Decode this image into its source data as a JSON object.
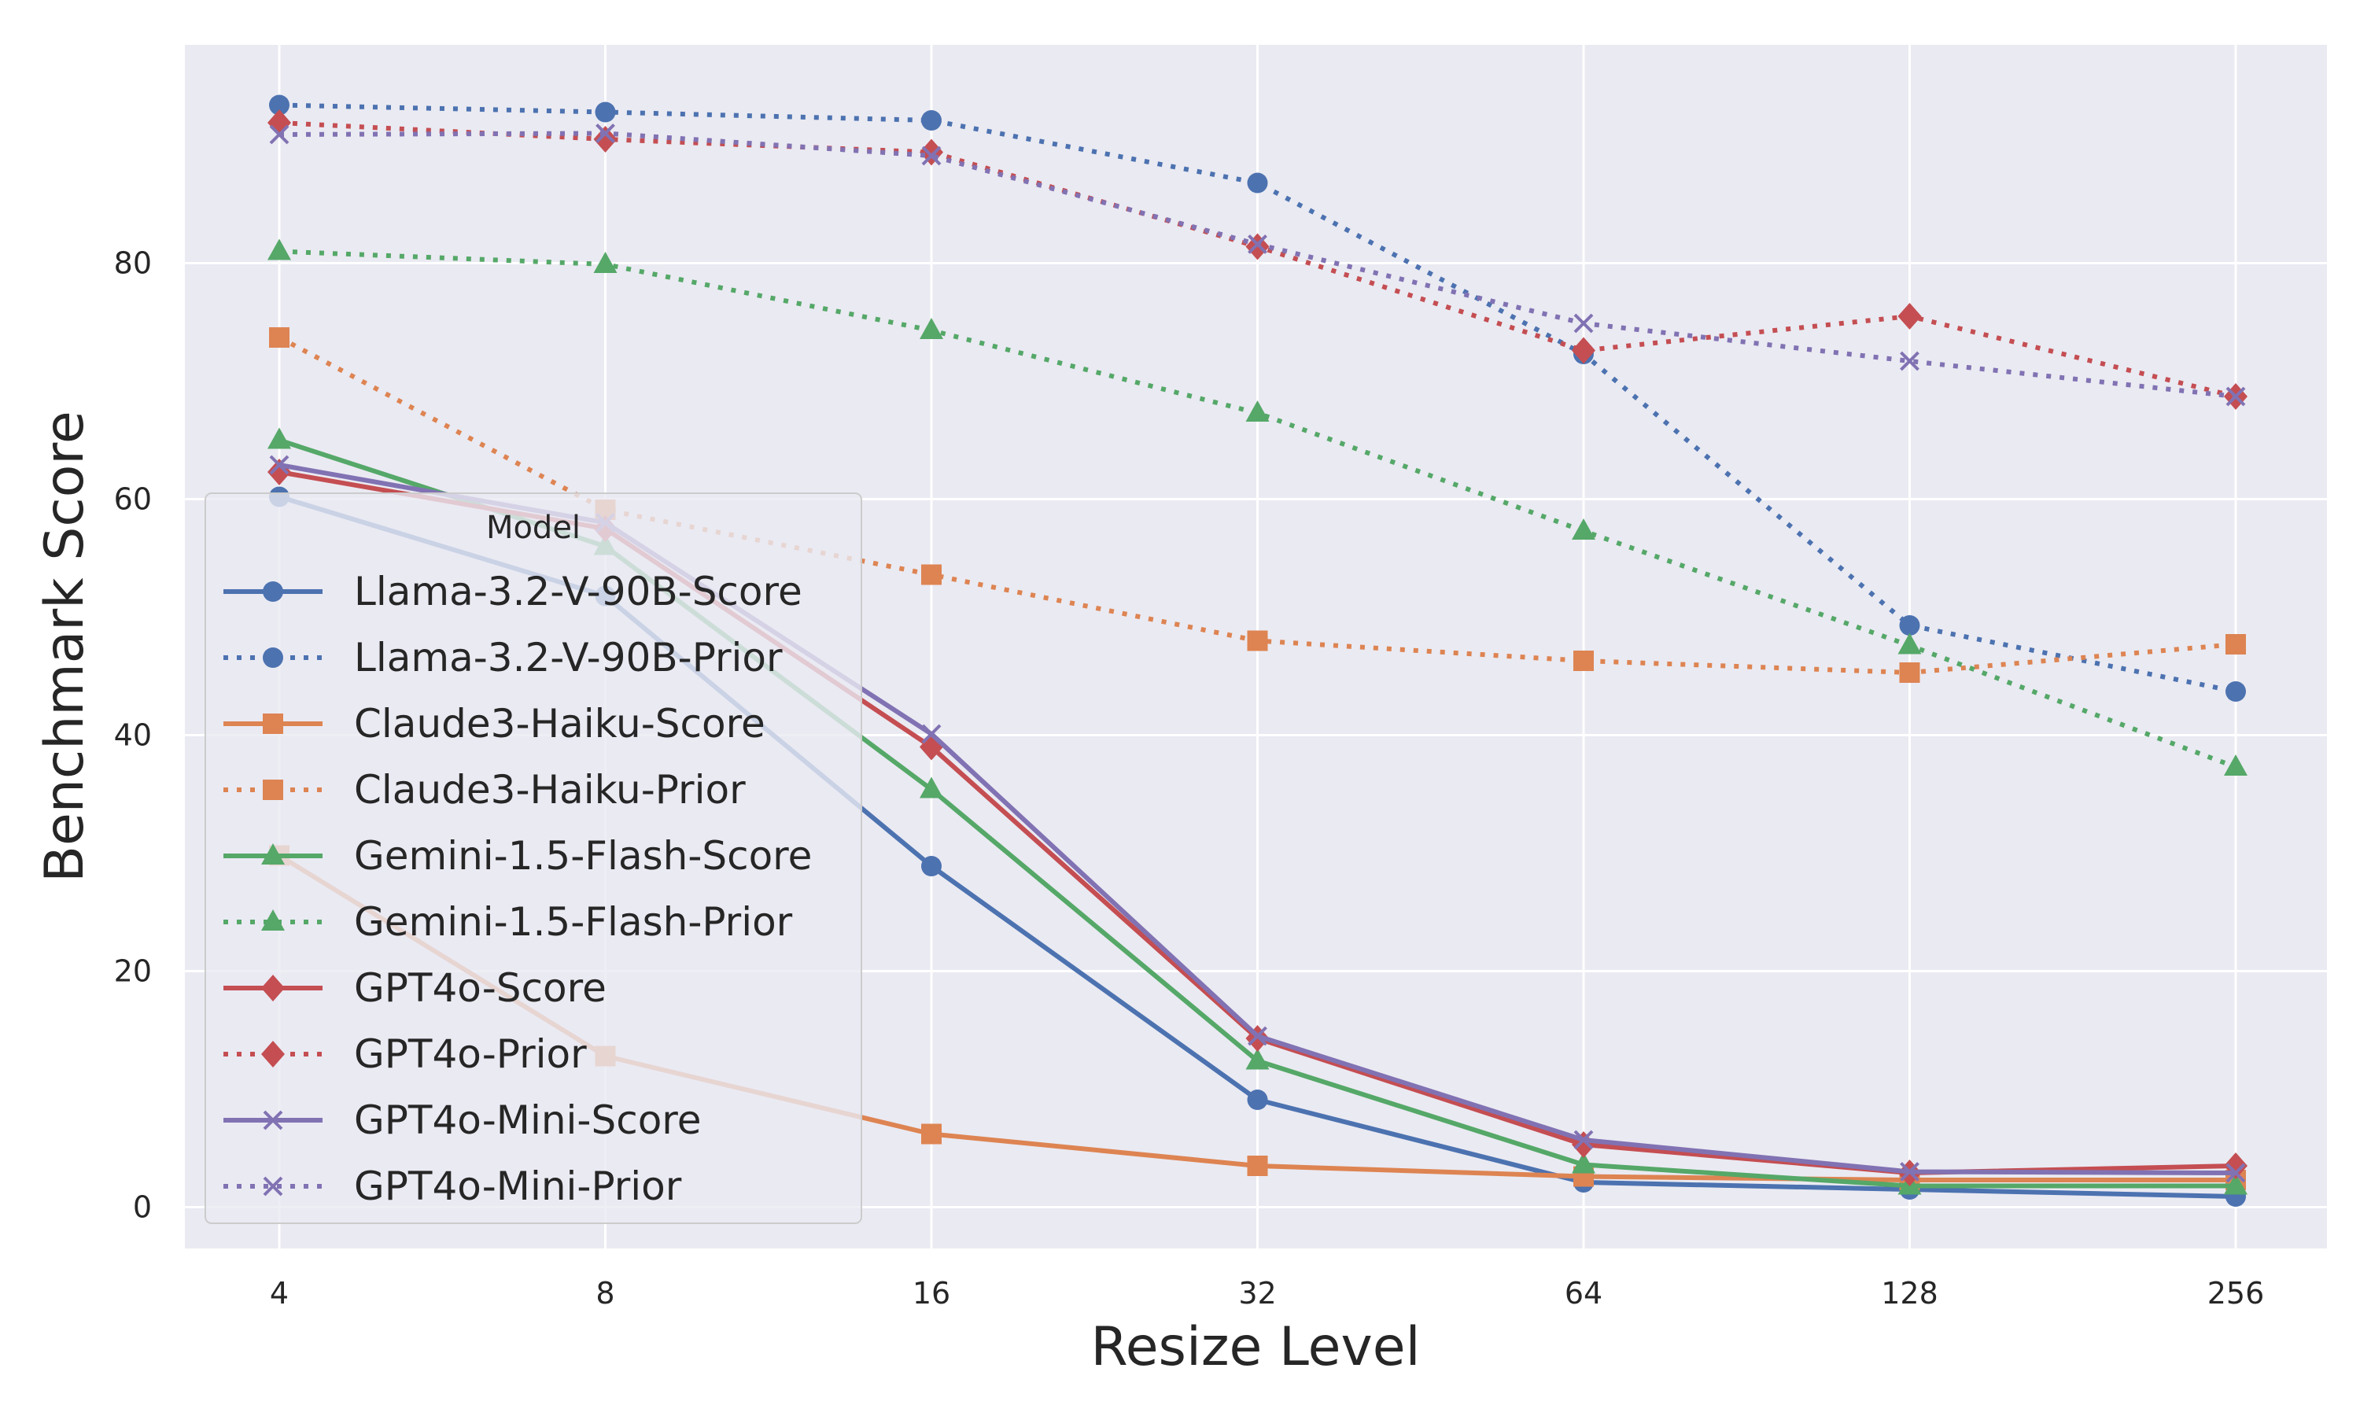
{
  "chart_data": {
    "type": "line",
    "title": "",
    "xlabel": "Resize Level",
    "ylabel": "Benchmark Score",
    "x": [
      "4",
      "8",
      "16",
      "32",
      "64",
      "128",
      "256"
    ],
    "xscale": "log2",
    "ylim": [
      -3.5,
      98.5
    ],
    "yticks": [
      0,
      20,
      40,
      60,
      80
    ],
    "grid": true,
    "legend": {
      "title": "Model",
      "location": "center-left"
    },
    "series": [
      {
        "name": "Llama-3.2-V-90B-Score",
        "color": "#4c72b0",
        "marker": "circle",
        "linestyle": "solid",
        "values": [
          60.2,
          51.8,
          28.9,
          9.1,
          2.1,
          1.5,
          0.9
        ]
      },
      {
        "name": "Llama-3.2-V-90B-Prior",
        "color": "#4c72b0",
        "marker": "circle",
        "linestyle": "dotted",
        "values": [
          93.4,
          92.8,
          92.1,
          86.8,
          72.3,
          49.3,
          43.7
        ]
      },
      {
        "name": "Claude3-Haiku-Score",
        "color": "#dd8452",
        "marker": "square",
        "linestyle": "solid",
        "values": [
          29.8,
          12.8,
          6.2,
          3.5,
          2.6,
          2.3,
          2.3
        ]
      },
      {
        "name": "Claude3-Haiku-Prior",
        "color": "#dd8452",
        "marker": "square",
        "linestyle": "dotted",
        "values": [
          73.7,
          59.1,
          53.6,
          48.0,
          46.3,
          45.3,
          47.7
        ]
      },
      {
        "name": "Gemini-1.5-Flash-Score",
        "color": "#55a868",
        "marker": "triangle",
        "linestyle": "solid",
        "values": [
          65.0,
          56.0,
          35.4,
          12.4,
          3.6,
          1.8,
          1.8
        ]
      },
      {
        "name": "Gemini-1.5-Flash-Prior",
        "color": "#55a868",
        "marker": "triangle",
        "linestyle": "dotted",
        "values": [
          81.0,
          79.9,
          74.3,
          67.3,
          57.3,
          47.6,
          37.3
        ]
      },
      {
        "name": "GPT4o-Score",
        "color": "#c44e52",
        "marker": "diamond",
        "linestyle": "solid",
        "values": [
          62.3,
          57.5,
          39.0,
          14.3,
          5.3,
          2.9,
          3.5
        ]
      },
      {
        "name": "GPT4o-Prior",
        "color": "#c44e52",
        "marker": "diamond",
        "linestyle": "dotted",
        "values": [
          91.9,
          90.5,
          89.4,
          81.4,
          72.6,
          75.5,
          68.7
        ]
      },
      {
        "name": "GPT4o-Mini-Score",
        "color": "#8172b3",
        "marker": "x",
        "linestyle": "solid",
        "values": [
          62.9,
          58.0,
          40.1,
          14.5,
          5.7,
          3.0,
          2.9
        ]
      },
      {
        "name": "GPT4o-Mini-Prior",
        "color": "#8172b3",
        "marker": "x",
        "linestyle": "dotted",
        "values": [
          90.9,
          91.0,
          89.1,
          81.6,
          74.9,
          71.7,
          68.7
        ]
      }
    ]
  }
}
